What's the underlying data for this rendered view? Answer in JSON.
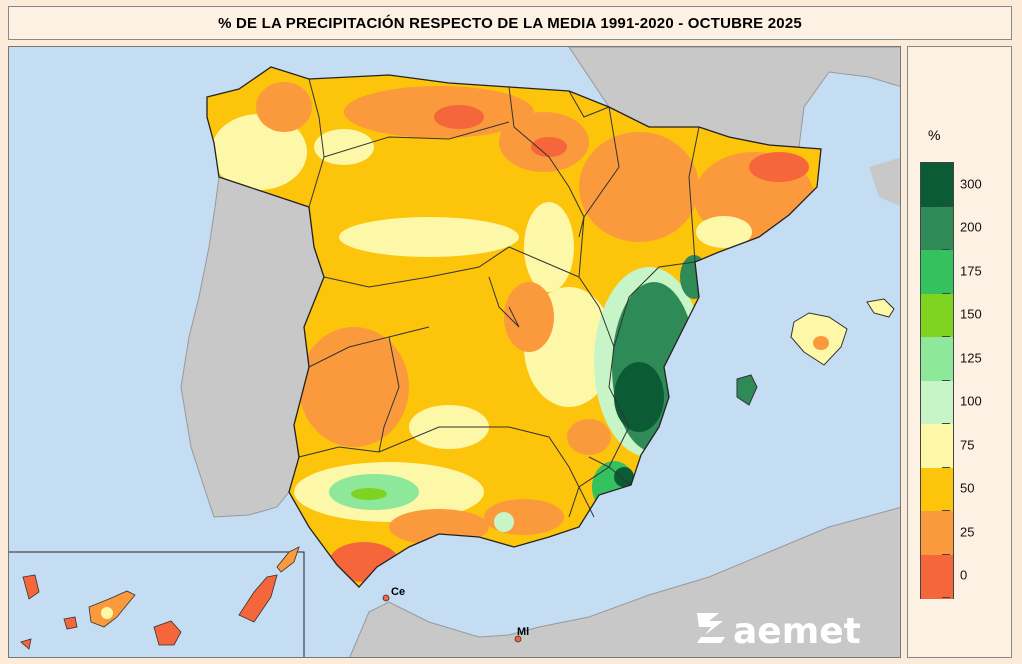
{
  "title": "% DE LA PRECIPITACIÓN RESPECTO DE LA MEDIA 1991-2020 - OCTUBRE 2025",
  "legend": {
    "unit": "%",
    "labels": [
      "300",
      "200",
      "175",
      "150",
      "125",
      "100",
      "75",
      "50",
      "25",
      "0"
    ],
    "colors": [
      "#0b5c34",
      "#2e8b57",
      "#35c25e",
      "#7ed321",
      "#8de89a",
      "#c8f5c8",
      "#fdf7a8",
      "#fcc40a",
      "#fa9a3c",
      "#f5663a"
    ]
  },
  "places": {
    "ceuta": "Ce",
    "melilla": "Ml"
  },
  "logo": {
    "text": "aemet",
    "icon": "aemet-logo-icon"
  },
  "colors": {
    "sea": "#c4ddf2",
    "land_other": "#c8c8c8",
    "border": "#333333"
  }
}
